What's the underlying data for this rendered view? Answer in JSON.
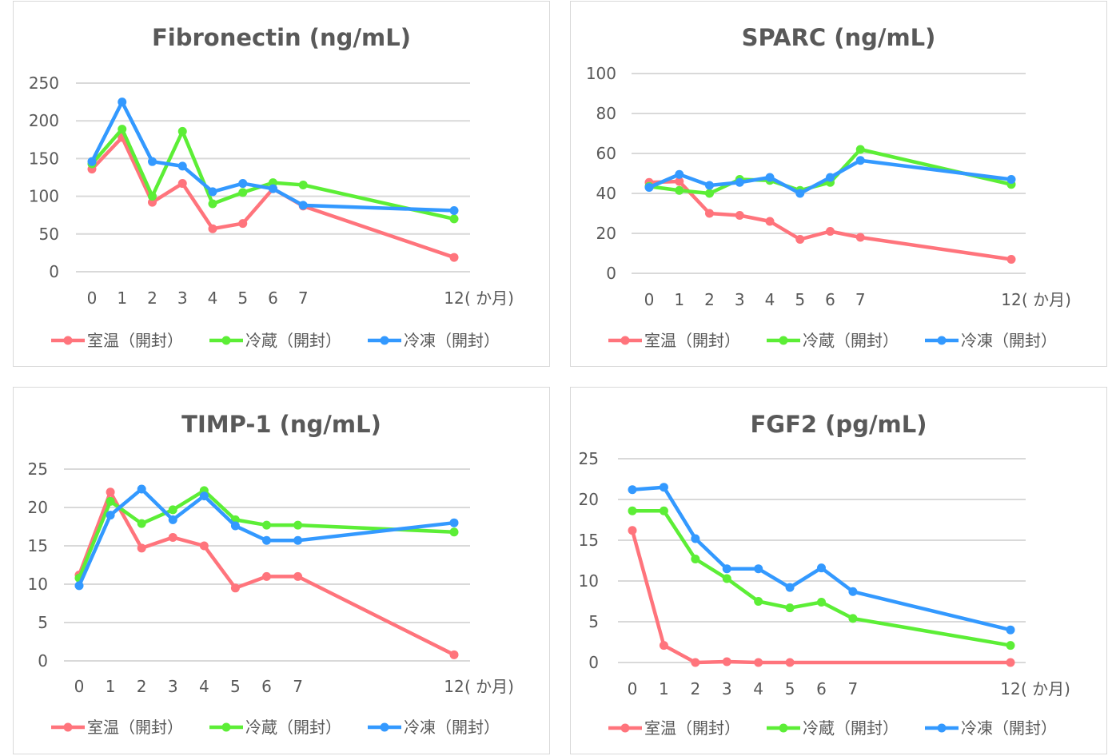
{
  "figure": {
    "x_unit_label": "( か月)"
  },
  "legend": [
    {
      "name": "室温（開封）",
      "color": "#FF747C"
    },
    {
      "name": "冷蔵（開封）",
      "color": "#5CEE36"
    },
    {
      "name": "冷凍（開封）",
      "color": "#3399FF"
    }
  ],
  "chart_data": [
    {
      "type": "line",
      "title": "Fibronectin (ng/mL)",
      "xlabel": "( か月)",
      "ylabel": "",
      "x": [
        0,
        1,
        2,
        3,
        4,
        5,
        6,
        7,
        12
      ],
      "x_tick_labels": [
        "0",
        "1",
        "2",
        "3",
        "4",
        "5",
        "6",
        "7",
        "12"
      ],
      "yticks": [
        0,
        50,
        100,
        150,
        200,
        250
      ],
      "ylim": [
        0,
        250
      ],
      "grid": true,
      "legend_position": "bottom",
      "series": [
        {
          "name": "室温（開封）",
          "color": "#FF747C",
          "values": [
            136,
            178,
            92,
            117,
            57,
            64,
            110,
            87,
            19
          ]
        },
        {
          "name": "冷蔵（開封）",
          "color": "#5CEE36",
          "values": [
            143,
            189,
            100,
            186,
            90,
            105,
            118,
            115,
            70
          ]
        },
        {
          "name": "冷凍（開封）",
          "color": "#3399FF",
          "values": [
            146,
            225,
            146,
            140,
            106,
            117,
            110,
            88,
            81
          ]
        }
      ]
    },
    {
      "type": "line",
      "title": "SPARC (ng/mL)",
      "xlabel": "( か月)",
      "ylabel": "",
      "x": [
        0,
        1,
        2,
        3,
        4,
        5,
        6,
        7,
        12
      ],
      "x_tick_labels": [
        "0",
        "1",
        "2",
        "3",
        "4",
        "5",
        "6",
        "7",
        "12"
      ],
      "yticks": [
        0,
        20,
        40,
        60,
        80,
        100
      ],
      "ylim": [
        0,
        100
      ],
      "grid": true,
      "legend_position": "bottom",
      "series": [
        {
          "name": "室温（開封）",
          "color": "#FF747C",
          "values": [
            45.5,
            46,
            30,
            29,
            26,
            17,
            21,
            18,
            7
          ]
        },
        {
          "name": "冷蔵（開封）",
          "color": "#5CEE36",
          "values": [
            43.5,
            41.5,
            40,
            47,
            46.5,
            41.5,
            45.5,
            62,
            44.5
          ]
        },
        {
          "name": "冷凍（開封）",
          "color": "#3399FF",
          "values": [
            43,
            49.5,
            44,
            45.5,
            48,
            40,
            48,
            56.5,
            47
          ]
        }
      ]
    },
    {
      "type": "line",
      "title": "TIMP-1 (ng/mL)",
      "xlabel": "( か月)",
      "ylabel": "",
      "x": [
        0,
        1,
        2,
        3,
        4,
        5,
        6,
        7,
        12
      ],
      "x_tick_labels": [
        "0",
        "1",
        "2",
        "3",
        "4",
        "5",
        "6",
        "7",
        "12"
      ],
      "yticks": [
        0,
        5,
        10,
        15,
        20,
        25
      ],
      "ylim": [
        0,
        25
      ],
      "grid": true,
      "legend_position": "bottom",
      "series": [
        {
          "name": "室温（開封）",
          "color": "#FF747C",
          "values": [
            11.2,
            22,
            14.7,
            16.1,
            15,
            9.5,
            11,
            11,
            0.8
          ]
        },
        {
          "name": "冷蔵（開封）",
          "color": "#5CEE36",
          "values": [
            10.8,
            20.8,
            17.9,
            19.7,
            22.2,
            18.4,
            17.7,
            17.7,
            16.8
          ]
        },
        {
          "name": "冷凍（開封）",
          "color": "#3399FF",
          "values": [
            9.8,
            19,
            22.4,
            18.4,
            21.5,
            17.6,
            15.7,
            15.7,
            18
          ]
        }
      ]
    },
    {
      "type": "line",
      "title": "FGF2 (pg/mL)",
      "xlabel": "( か月)",
      "ylabel": "",
      "x": [
        0,
        1,
        2,
        3,
        4,
        5,
        6,
        7,
        12
      ],
      "x_tick_labels": [
        "0",
        "1",
        "2",
        "3",
        "4",
        "5",
        "6",
        "7",
        "12"
      ],
      "yticks": [
        0,
        5,
        10,
        15,
        20,
        25
      ],
      "ylim": [
        0,
        25
      ],
      "grid": true,
      "legend_position": "bottom",
      "series": [
        {
          "name": "室温（開封）",
          "color": "#FF747C",
          "values": [
            16.2,
            2.1,
            0,
            0.1,
            0,
            0,
            null,
            null,
            0
          ]
        },
        {
          "name": "冷蔵（開封）",
          "color": "#5CEE36",
          "values": [
            18.6,
            18.6,
            12.7,
            10.3,
            7.5,
            6.7,
            7.4,
            5.4,
            2.1
          ]
        },
        {
          "name": "冷凍（開封）",
          "color": "#3399FF",
          "values": [
            21.2,
            21.5,
            15.2,
            11.5,
            11.5,
            9.2,
            11.6,
            8.7,
            4
          ]
        }
      ]
    }
  ]
}
